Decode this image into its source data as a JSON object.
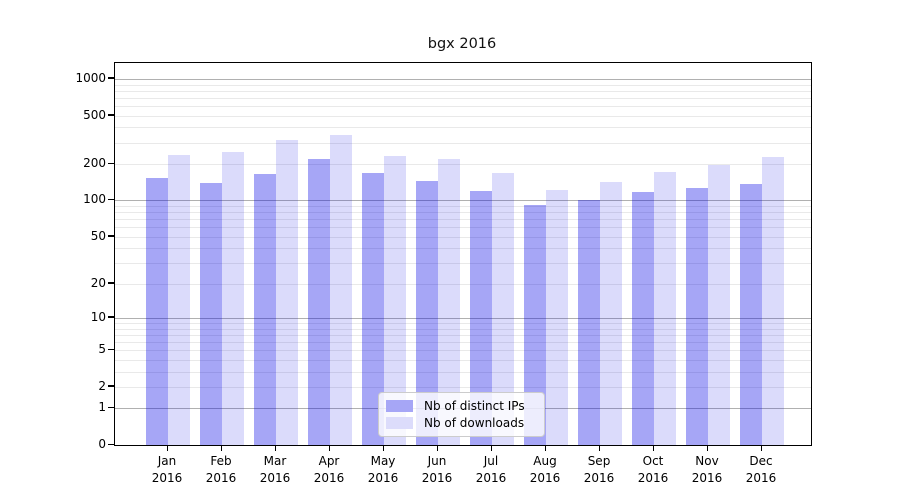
{
  "chart_data": {
    "type": "bar",
    "title": "bgx 2016",
    "categories": [
      "Jan 2016",
      "Feb 2016",
      "Mar 2016",
      "Apr 2016",
      "May 2016",
      "Jun 2016",
      "Jul 2016",
      "Aug 2016",
      "Sep 2016",
      "Oct 2016",
      "Nov 2016",
      "Dec 2016"
    ],
    "x_months": [
      "Jan",
      "Feb",
      "Mar",
      "Apr",
      "May",
      "Jun",
      "Jul",
      "Aug",
      "Sep",
      "Oct",
      "Nov",
      "Dec"
    ],
    "x_year": "2016",
    "series": [
      {
        "name": "Nb of distinct IPs",
        "color": "rgba(0,0,230,0.35)",
        "legend_color": "#a6a6f6",
        "values": [
          153,
          139,
          165,
          220,
          169,
          145,
          120,
          92,
          101,
          118,
          127,
          136
        ]
      },
      {
        "name": "Nb of downloads",
        "color": "rgba(0,0,230,0.14)",
        "legend_color": "#dcdcfb",
        "values": [
          237,
          251,
          315,
          346,
          233,
          220,
          169,
          122,
          143,
          172,
          196,
          228
        ]
      }
    ],
    "y_ticks": [
      0,
      1,
      2,
      5,
      10,
      20,
      50,
      100,
      200,
      500,
      1000
    ],
    "y_minor_gridlines": [
      2,
      3,
      4,
      5,
      6,
      7,
      8,
      9,
      20,
      30,
      40,
      50,
      60,
      70,
      80,
      90,
      200,
      300,
      400,
      500,
      600,
      700,
      800,
      900
    ],
    "y_major_gridlines": [
      1,
      10,
      100,
      1000
    ],
    "y_scale": "log10(value+1)",
    "ylim": [
      0,
      1350
    ],
    "xlabel": "",
    "ylabel": "",
    "grid": true,
    "legend_position": "lower center inside",
    "axis_color": "#000000",
    "grid_major_color": "#b0b0b0",
    "grid_minor_color": "#e9e9e9",
    "background_color": "#ffffff"
  }
}
